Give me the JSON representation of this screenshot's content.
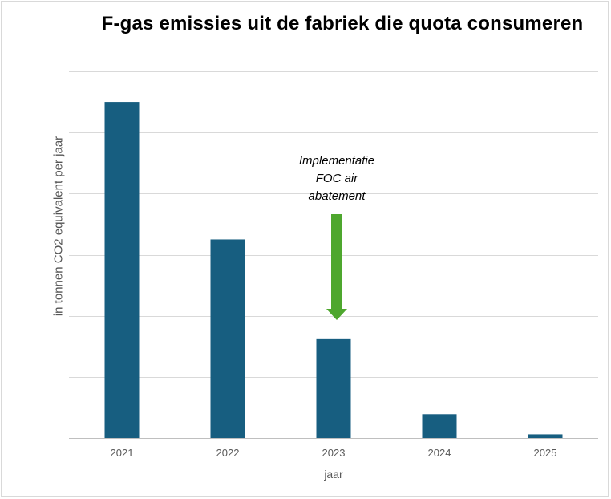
{
  "chart_data": {
    "type": "bar",
    "title": "F-gas emissies uit de fabriek die quota consumeren",
    "xlabel": "jaar",
    "ylabel": "in tonnen CO2 equivalent per jaar",
    "categories": [
      "2021",
      "2022",
      "2023",
      "2024",
      "2025"
    ],
    "values": [
      5.5,
      3.25,
      1.63,
      0.39,
      0.06
    ],
    "ylim": [
      0,
      6
    ],
    "y_tick_labels_shown": false,
    "grid": true,
    "legend": "none",
    "bar_color": "#175e80",
    "annotation": {
      "lines": [
        "Implementatie",
        "FOC air",
        "abatement"
      ],
      "category": "2023",
      "arrow_color": "#4ea72e"
    }
  }
}
